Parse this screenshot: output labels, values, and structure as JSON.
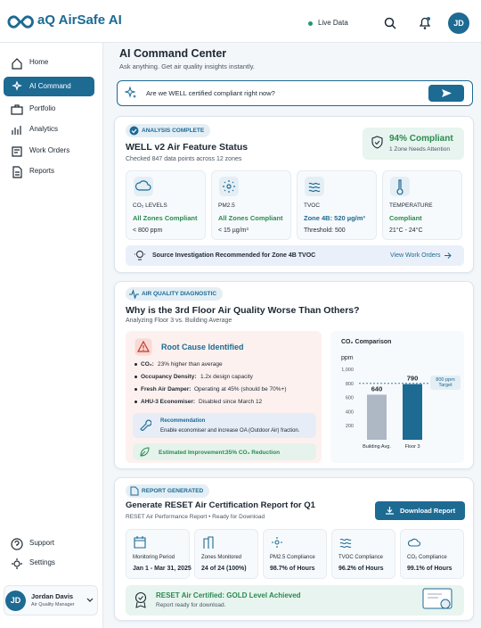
{
  "brand": {
    "name": "aQ AirSafe AI"
  },
  "topbar": {
    "live": "Live Data",
    "avatar": "JD"
  },
  "sidebar": {
    "nav": [
      "Home",
      "AI Command",
      "Portfolio",
      "Analytics",
      "Work Orders",
      "Reports"
    ],
    "bottom": [
      "Support",
      "Settings"
    ],
    "user": {
      "initials": "JD",
      "name": "Jordan Davis",
      "role": "Air Quality Manager"
    }
  },
  "header": {
    "title": "AI Command Center",
    "subtitle": "Ask anything. Get air quality insights instantly."
  },
  "query": {
    "text": "Are we WELL certified compliant right now?"
  },
  "status_card": {
    "badge": "ANALYSIS COMPLETE",
    "title": "WELL v2 Air Feature Status",
    "subtitle": "Checked 847 data points across 12 zones",
    "compliance": "94% Compliant",
    "attention": "1 Zone Needs Attention",
    "metrics": [
      {
        "label": "CO₂ LEVELS",
        "status": "All Zones Compliant",
        "detail": "< 800 ppm"
      },
      {
        "label": "PM2.5",
        "status": "All Zones Compliant",
        "detail": "< 15 µg/m³"
      },
      {
        "label": "TVOC",
        "status": "Zone 4B: 520 µg/m³",
        "detail": "Threshold: 500"
      },
      {
        "label": "TEMPERATURE",
        "status": "Compliant",
        "detail": "21°C - 24°C"
      }
    ],
    "banner": "Source Investigation Recommended for Zone 4B TVOC",
    "link": "View Work Orders"
  },
  "diagnostic_card": {
    "badge": "AIR QUALITY DIAGNOSTIC",
    "title": "Why is the 3rd Floor Air Quality Worse Than Others?",
    "subtitle": "Analyzing Floor 3 vs. Building Average",
    "root_cause": {
      "title": "Root Cause Identified",
      "items": [
        {
          "label": "CO₂:",
          "text": "23% higher than average"
        },
        {
          "label": "Occupancy Density:",
          "text": "1.2x design capacity"
        },
        {
          "label": "Fresh Air Damper:",
          "text": "Operating at 45% (should be 70%+)"
        },
        {
          "label": "AHU-3 Economiser:",
          "text": "Disabled since March 12"
        }
      ],
      "recommendation_title": "Recommendation",
      "recommendation": "Enable economiser and increase OA (Outdoor Air) fraction.",
      "improvement_label": "Estimated Improvement:",
      "improvement": "35% CO₂ Reduction"
    },
    "chart": {
      "type": "bar",
      "title": "CO₂ Comparison",
      "y_label": "ppm",
      "categories": [
        "Building Avg.",
        "Floor 3"
      ],
      "values": [
        640,
        790
      ],
      "colors": [
        "#aeb7c4",
        "#1d6a93"
      ],
      "ylim": [
        0,
        1000
      ],
      "yticks": [
        200,
        400,
        600,
        800,
        {
          "value": 1000,
          "label": "1,000"
        }
      ],
      "target": {
        "value": 800,
        "label": "800 ppm Target"
      }
    }
  },
  "report_card": {
    "badge": "REPORT GENERATED",
    "title": "Generate RESET Air Certification Report for Q1",
    "subtitle": "RESET Air Performance Report • Ready for Download",
    "button": "Download Report",
    "stats": [
      {
        "label": "Monitoring Period",
        "value": "Jan 1 - Mar 31, 2025"
      },
      {
        "label": "Zones Monitored",
        "value": "24 of 24 (100%)"
      },
      {
        "label": "PM2.5 Compliance",
        "value": "98.7% of Hours"
      },
      {
        "label": "TVOC Compliance",
        "value": "96.2% of Hours"
      },
      {
        "label": "CO₂ Compliance",
        "value": "99.1% of Hours"
      }
    ],
    "certified": "RESET Air Certified: GOLD Level Achieved",
    "certified_sub": "Report ready for download."
  }
}
